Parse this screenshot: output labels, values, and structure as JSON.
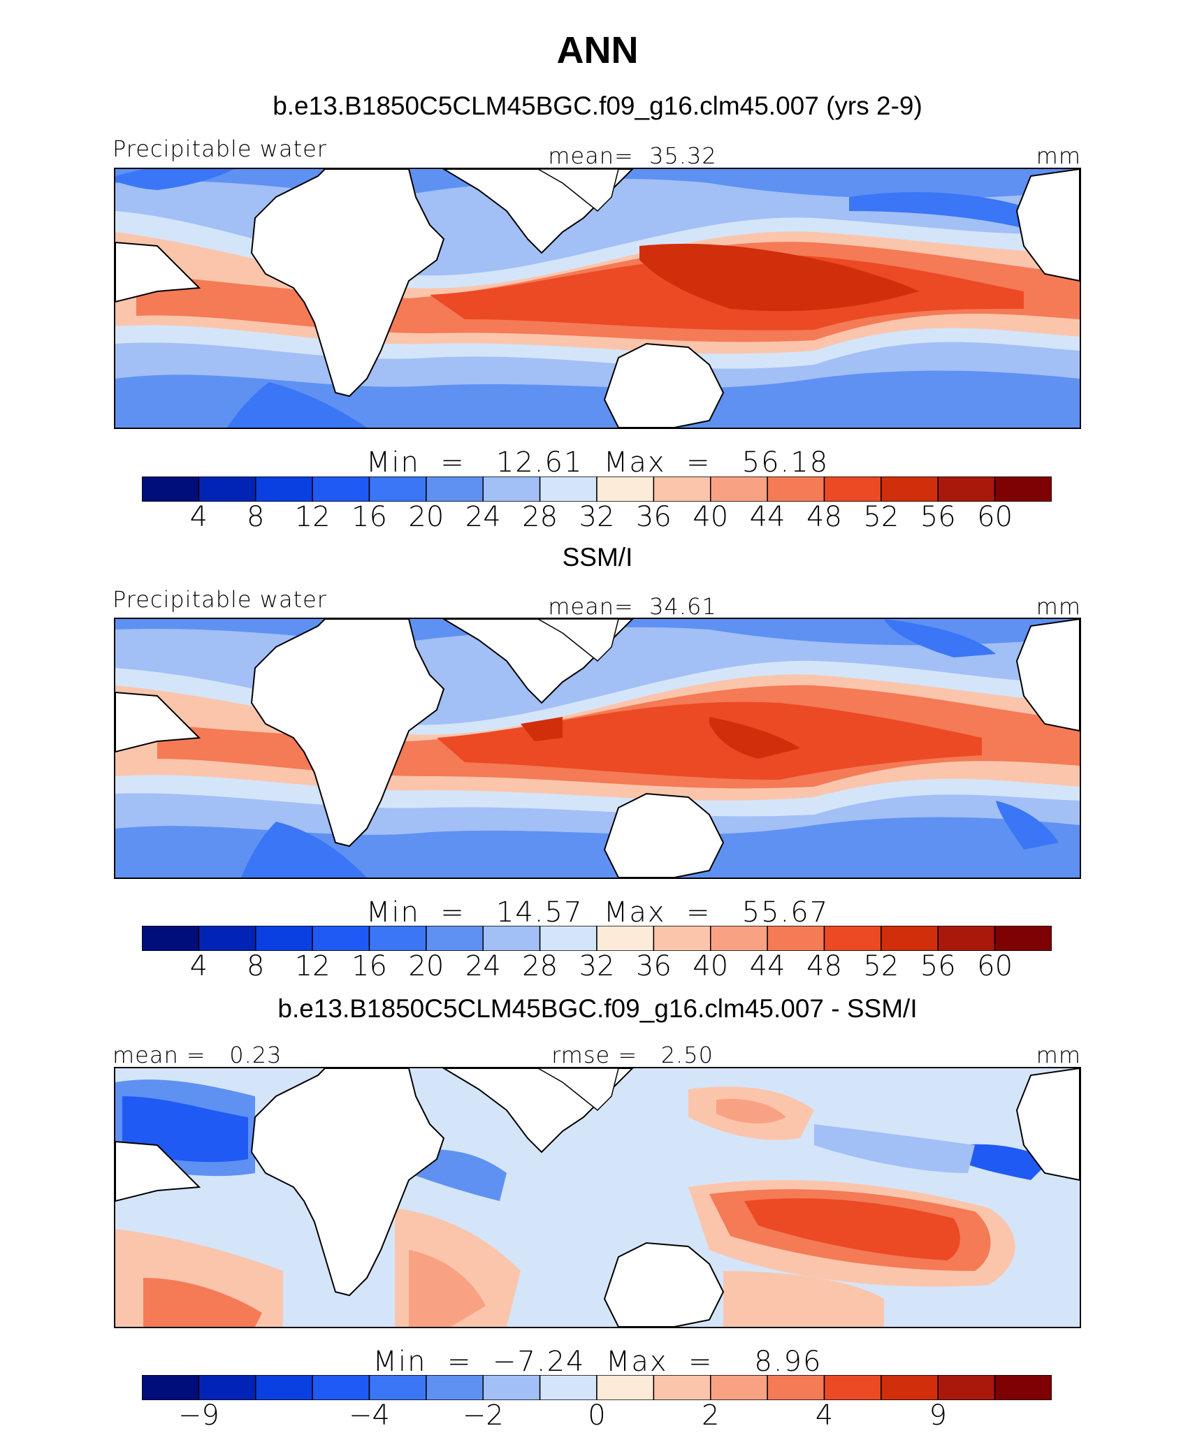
{
  "title": "ANN",
  "panels": [
    {
      "id": "model",
      "subtitle": "b.e13.B1850C5CLM45BGC.f09_g16.clm45.007 (yrs 2-9)",
      "left_label": "Precipitable water",
      "center_label": "mean=  35.32",
      "right_label": "mm",
      "stats": "Min  =   12.61  Max  =   56.18",
      "colorbar": {
        "ticks": [
          "4",
          "8",
          "12",
          "16",
          "20",
          "24",
          "28",
          "32",
          "36",
          "40",
          "44",
          "48",
          "52",
          "56",
          "60"
        ],
        "colors": [
          "#000e7b",
          "#0224b6",
          "#0a40e2",
          "#1f5af5",
          "#3a76f5",
          "#5f91f3",
          "#a2bff6",
          "#d4e5fa",
          "#fdebd9",
          "#fbc5ac",
          "#f9a283",
          "#f57a56",
          "#eb4a25",
          "#d12e0b",
          "#a8190b",
          "#7e0104"
        ]
      }
    },
    {
      "id": "obs",
      "subtitle": "SSM/I",
      "left_label": "Precipitable water",
      "center_label": "mean=  34.61",
      "right_label": "mm",
      "stats": "Min  =   14.57  Max  =   55.67",
      "colorbar": {
        "ticks": [
          "4",
          "8",
          "12",
          "16",
          "20",
          "24",
          "28",
          "32",
          "36",
          "40",
          "44",
          "48",
          "52",
          "56",
          "60"
        ],
        "colors": [
          "#000e7b",
          "#0224b6",
          "#0a40e2",
          "#1f5af5",
          "#3a76f5",
          "#5f91f3",
          "#a2bff6",
          "#d4e5fa",
          "#fdebd9",
          "#fbc5ac",
          "#f9a283",
          "#f57a56",
          "#eb4a25",
          "#d12e0b",
          "#a8190b",
          "#7e0104"
        ]
      }
    },
    {
      "id": "diff",
      "subtitle": "b.e13.B1850C5CLM45BGC.f09_g16.clm45.007 - SSM/I",
      "left_label": "mean =   0.23",
      "center_label": "rmse =   2.50",
      "right_label": "mm",
      "stats": "Min  =  −7.24  Max  =    8.96",
      "colorbar": {
        "ticks": [
          "−9",
          "−4",
          "−2",
          "0",
          "2",
          "4",
          "9"
        ],
        "tick_boundaries": [
          1,
          4,
          6,
          8,
          10,
          12,
          14
        ],
        "colors": [
          "#000e7b",
          "#0224b6",
          "#0a40e2",
          "#1f5af5",
          "#3a76f5",
          "#5f91f3",
          "#a2bff6",
          "#d4e5fa",
          "#fdebd9",
          "#fbc5ac",
          "#f9a283",
          "#f57a56",
          "#eb4a25",
          "#d12e0b",
          "#a8190b",
          "#7e0104"
        ]
      }
    }
  ],
  "palette": {
    "deep_blue": "#0a40e2",
    "blue": "#3a76f5",
    "mid_blue": "#5f91f3",
    "light_blue": "#a2bff6",
    "pale_blue": "#d4e5fa",
    "cream": "#fdebd9",
    "peach": "#fbc5ac",
    "salmon": "#f9a283",
    "orange": "#f57a56",
    "red_orange": "#eb4a25",
    "red": "#d12e0b",
    "dark_red": "#a8190b"
  },
  "map_region": "Tropics, 30°W–90°W via 180°",
  "land_color": "#ffffff",
  "coastline_color": "#000000"
}
